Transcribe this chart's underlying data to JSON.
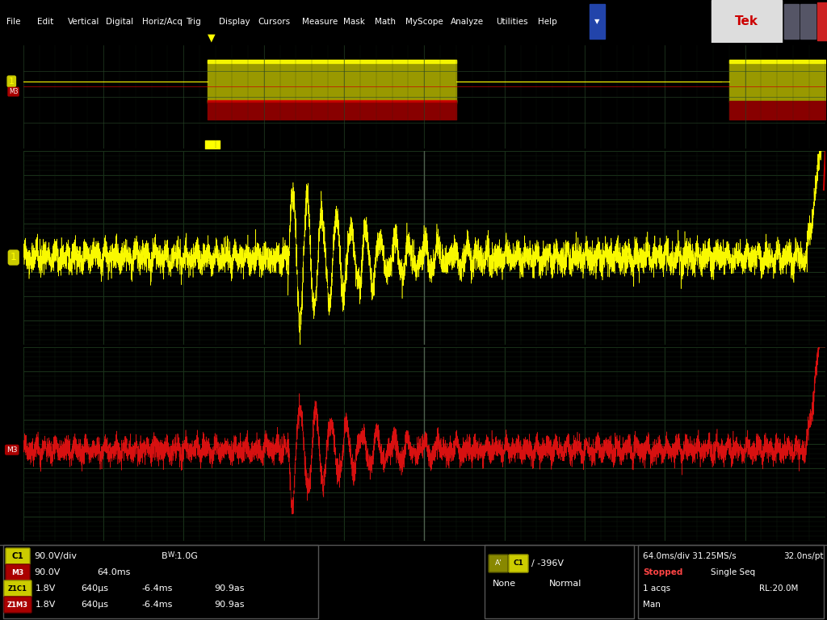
{
  "bg_color": "#000000",
  "toolbar_color": "#1a3a6b",
  "grid_color": "#2a4a2a",
  "grid_minor_color": "#1a2a1a",
  "ch1_color": "#ffff00",
  "ch_red_color": "#cc0000",
  "ch_red2_color": "#dd1111",
  "overview_bg": "#050505",
  "panel_border": "#3a5a3a",
  "toolbar_items": [
    "File",
    "Edit",
    "Vertical",
    "Digital",
    "Horiz/Acq",
    "Trig",
    "Display",
    "Cursors",
    "Measure",
    "Mask",
    "Math",
    "MyScope",
    "Analyze",
    "Utilities",
    "Help"
  ]
}
